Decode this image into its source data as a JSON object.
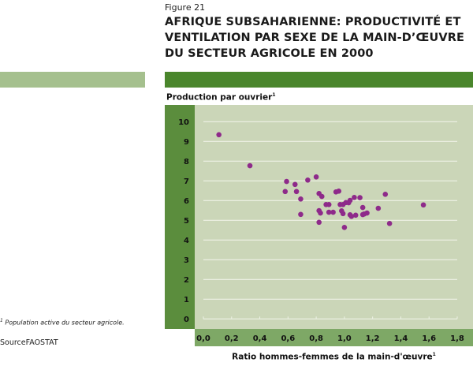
{
  "figure": {
    "label": "Figure 21",
    "title": "AFRIQUE SUBSAHARIENNE: PRODUCTIVITÉ ET VENTILATION PAR SEXE DE LA MAIN-D’ŒUVRE DU SECTEUR AGRICOLE EN 2000"
  },
  "footnote": {
    "marker": "1",
    "text": "Population active du secteur agricole."
  },
  "source": {
    "label": "Source",
    "value": "FAOSTAT"
  },
  "colors": {
    "header_bar": "#4a862c",
    "side_bar": "#a5c08e",
    "y_panel": "#5b8d3d",
    "x_panel": "#7ea866",
    "plot_bg": "#cbd6b8",
    "gridline": "#eef2e6",
    "point": "#8e2a8a"
  },
  "chart_data": {
    "type": "scatter",
    "title": "AFRIQUE SUBSAHARIENNE: PRODUCTIVITÉ ET VENTILATION PAR SEXE DE LA MAIN-D’ŒUVRE DU SECTEUR AGRICOLE EN 2000",
    "xlabel": "Ratio hommes-femmes de la main-d'œuvre",
    "xlabel_sup": "1",
    "ylabel": "Production par ouvrier",
    "ylabel_sup": "1",
    "xlim": [
      0,
      1.8
    ],
    "ylim": [
      0,
      10
    ],
    "xticks": [
      "0,0",
      "0,2",
      "0,4",
      "0,6",
      "0,8",
      "1,0",
      "1,2",
      "1,4",
      "1,6",
      "1,8"
    ],
    "xtick_values": [
      0,
      0.2,
      0.4,
      0.6,
      0.8,
      1.0,
      1.2,
      1.4,
      1.6,
      1.8
    ],
    "yticks": [
      "0",
      "1",
      "2",
      "3",
      "4",
      "5",
      "6",
      "7",
      "8",
      "9",
      "10"
    ],
    "ytick_values": [
      0,
      1,
      2,
      3,
      4,
      5,
      6,
      7,
      8,
      9,
      10
    ],
    "grid": "horizontal",
    "legend": "none",
    "points": [
      {
        "x": 0.11,
        "y": 9.34
      },
      {
        "x": 0.33,
        "y": 7.77
      },
      {
        "x": 0.58,
        "y": 6.46
      },
      {
        "x": 0.59,
        "y": 6.97
      },
      {
        "x": 0.65,
        "y": 6.82
      },
      {
        "x": 0.66,
        "y": 6.46
      },
      {
        "x": 0.69,
        "y": 6.08
      },
      {
        "x": 0.69,
        "y": 5.3
      },
      {
        "x": 0.74,
        "y": 7.04
      },
      {
        "x": 0.8,
        "y": 7.2
      },
      {
        "x": 0.82,
        "y": 6.36
      },
      {
        "x": 0.84,
        "y": 6.21
      },
      {
        "x": 0.82,
        "y": 5.49
      },
      {
        "x": 0.83,
        "y": 5.37
      },
      {
        "x": 0.82,
        "y": 4.9
      },
      {
        "x": 0.87,
        "y": 5.8
      },
      {
        "x": 0.89,
        "y": 5.8
      },
      {
        "x": 0.89,
        "y": 5.41
      },
      {
        "x": 0.92,
        "y": 5.41
      },
      {
        "x": 0.94,
        "y": 6.44
      },
      {
        "x": 0.96,
        "y": 6.48
      },
      {
        "x": 0.97,
        "y": 5.8
      },
      {
        "x": 0.99,
        "y": 5.8
      },
      {
        "x": 0.98,
        "y": 5.48
      },
      {
        "x": 0.99,
        "y": 5.34
      },
      {
        "x": 1.0,
        "y": 4.64
      },
      {
        "x": 1.01,
        "y": 5.9
      },
      {
        "x": 1.03,
        "y": 5.89
      },
      {
        "x": 1.04,
        "y": 6.01
      },
      {
        "x": 1.04,
        "y": 5.28
      },
      {
        "x": 1.05,
        "y": 5.2
      },
      {
        "x": 1.07,
        "y": 6.16
      },
      {
        "x": 1.08,
        "y": 5.26
      },
      {
        "x": 1.11,
        "y": 6.15
      },
      {
        "x": 1.13,
        "y": 5.65
      },
      {
        "x": 1.13,
        "y": 5.29
      },
      {
        "x": 1.14,
        "y": 5.32
      },
      {
        "x": 1.16,
        "y": 5.37
      },
      {
        "x": 1.24,
        "y": 5.61
      },
      {
        "x": 1.29,
        "y": 6.32
      },
      {
        "x": 1.32,
        "y": 4.84
      },
      {
        "x": 1.56,
        "y": 5.78
      }
    ]
  }
}
